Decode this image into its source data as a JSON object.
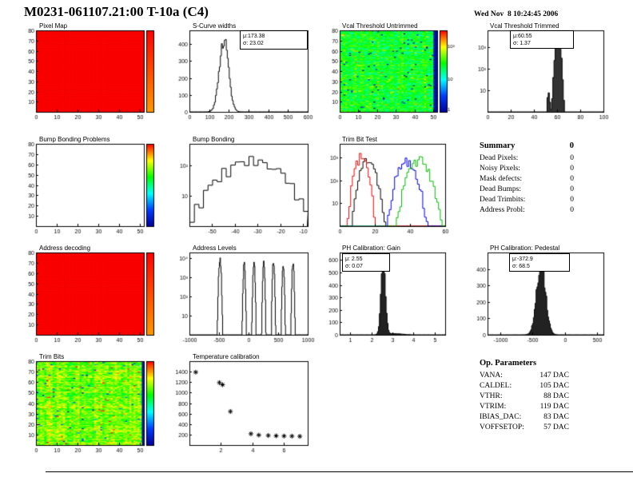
{
  "header": {
    "title": "M0231-061107.21:00 T-10a (C4)",
    "timestamp": "Wed Nov  8 10:24:45 2006"
  },
  "summary": {
    "title": "Summary",
    "total": "0",
    "rows": [
      {
        "label": "Dead Pixels:",
        "value": "0"
      },
      {
        "label": "Noisy Pixels:",
        "value": "0"
      },
      {
        "label": "Mask defects:",
        "value": "0"
      },
      {
        "label": "Dead Bumps:",
        "value": "0"
      },
      {
        "label": "Dead Trimbits:",
        "value": "0"
      },
      {
        "label": "Address Probl:",
        "value": "0"
      }
    ]
  },
  "op_parameters": {
    "title": "Op. Parameters",
    "rows": [
      {
        "label": "VANA:",
        "value": "147 DAC"
      },
      {
        "label": "CALDEL:",
        "value": "105 DAC"
      },
      {
        "label": "VTHR:",
        "value": "88 DAC"
      },
      {
        "label": "VTRIM:",
        "value": "119 DAC"
      },
      {
        "label": "IBIAS_DAC:",
        "value": "83 DAC"
      },
      {
        "label": "VOFFSETOP:",
        "value": "57 DAC"
      }
    ]
  },
  "chart_data": [
    {
      "id": "pixel-map",
      "type": "heatmap",
      "title": "Pixel Map",
      "mode": "uniform",
      "cols": 52,
      "rows": 80,
      "x": {
        "min": 0,
        "max": 52,
        "ticks": [
          0,
          10,
          20,
          30,
          40,
          50
        ]
      },
      "y": {
        "min": 0,
        "max": 80,
        "ticks": [
          10,
          20,
          30,
          40,
          50,
          60,
          70,
          80
        ]
      },
      "colorbar": {
        "range": [
          0.88,
          1
        ]
      }
    },
    {
      "id": "scurve-widths",
      "type": "hist",
      "title": "S-Curve widths",
      "x": {
        "min": 0,
        "max": 600,
        "ticks": [
          0,
          100,
          200,
          300,
          400,
          500,
          600
        ]
      },
      "y": {
        "min": 0,
        "max": 480,
        "ticks": [
          0,
          100,
          200,
          300,
          400
        ]
      },
      "bins": 120,
      "line": "#000000",
      "noise": 0.1,
      "seed": 3,
      "components": [
        {
          "mean": 173.38,
          "sigma": 23.02,
          "peak": 430
        }
      ],
      "stats": [
        "μ:173.38",
        "σ: 23.02"
      ]
    },
    {
      "id": "vcal-untrimmed",
      "type": "heatmap",
      "title": "Vcal Threshold Untrimmed",
      "mode": "noise",
      "cols": 52,
      "rows": 80,
      "base": 0.58,
      "spread": 0.09,
      "seed": 42,
      "edge_cols": 2,
      "edge_value": 0.04,
      "x": {
        "min": 0,
        "max": 52,
        "ticks": [
          0,
          10,
          20,
          30,
          40,
          50
        ]
      },
      "y": {
        "min": 0,
        "max": 80,
        "ticks": [
          10,
          20,
          30,
          40,
          50,
          60,
          70,
          80
        ]
      },
      "colorbar": {
        "range": [
          0,
          1
        ],
        "labels": [
          {
            "label": "10²",
            "f": 0.2
          },
          {
            "label": "10",
            "f": 0.6
          },
          {
            "label": "1",
            "f": 0.97
          }
        ]
      }
    },
    {
      "id": "vcal-trimmed",
      "type": "hist",
      "logy": true,
      "title": "Vcal Threshold Trimmed",
      "x": {
        "min": 0,
        "max": 100,
        "ticks": [
          0,
          20,
          40,
          60,
          80,
          100
        ]
      },
      "y": {
        "min": 1,
        "max": 6000,
        "ticks": [
          {
            "v": 10,
            "label": "10"
          },
          {
            "v": 100,
            "label": "10²"
          },
          {
            "v": 1000,
            "label": "10³"
          }
        ]
      },
      "bins": 100,
      "line": "#000000",
      "fill": "#333333",
      "noise": 0.3,
      "seed": 4,
      "components": [
        {
          "mean": 60.55,
          "sigma": 1.37,
          "peak": 2800
        },
        {
          "mean": 52.5,
          "sigma": 1.1,
          "peak": 6
        }
      ],
      "stats": [
        "μ:60.55",
        "σ: 1.37"
      ]
    },
    {
      "id": "bump-problems",
      "type": "heatmap",
      "title": "Bump Bonding Problems",
      "mode": "empty",
      "cols": 52,
      "rows": 80,
      "x": {
        "min": 0,
        "max": 52,
        "ticks": [
          0,
          10,
          20,
          30,
          40,
          50
        ]
      },
      "y": {
        "min": 0,
        "max": 80,
        "ticks": [
          10,
          20,
          30,
          40,
          50,
          60,
          70,
          80
        ]
      },
      "colorbar": {
        "range": [
          0,
          1
        ]
      }
    },
    {
      "id": "bump-bonding",
      "type": "hist",
      "logy": true,
      "title": "Bump Bonding",
      "x": {
        "min": -60,
        "max": -8,
        "ticks": [
          -50,
          -40,
          -30,
          -20,
          -10
        ]
      },
      "y": {
        "min": 1,
        "max": 500,
        "ticks": [
          {
            "v": 10,
            "label": "10"
          },
          {
            "v": 100,
            "label": "10²"
          }
        ]
      },
      "bins": 26,
      "line": "#000000",
      "noise": 0.55,
      "seed": 9,
      "components": [
        {
          "mean": -33,
          "sigma": 9,
          "peak": 130
        }
      ]
    },
    {
      "id": "trimbit-test",
      "type": "multihist",
      "logy": true,
      "title": "Trim Bit Test",
      "x": {
        "min": 0,
        "max": 60,
        "ticks": [
          0,
          20,
          40,
          60
        ]
      },
      "y": {
        "min": 1,
        "max": 4000,
        "ticks": [
          {
            "v": 10,
            "label": "10"
          },
          {
            "v": 100,
            "label": "10²"
          },
          {
            "v": 1000,
            "label": "10³"
          }
        ]
      },
      "bins": 60,
      "series": [
        {
          "color": "#000000",
          "mean": 16,
          "sigma": 2.6,
          "peak": 900,
          "seed": 11,
          "noise": 0.5
        },
        {
          "color": "#ee0000",
          "mean": 12,
          "sigma": 2.2,
          "peak": 1100,
          "seed": 12,
          "noise": 0.5
        },
        {
          "color": "#0000ee",
          "mean": 38,
          "sigma": 3.2,
          "peak": 800,
          "seed": 13,
          "noise": 0.5
        },
        {
          "color": "#00bb00",
          "mean": 45,
          "sigma": 3.6,
          "peak": 900,
          "seed": 14,
          "noise": 0.5
        }
      ]
    },
    {
      "id": "address-decoding",
      "type": "heatmap",
      "title": "Address decoding",
      "mode": "uniform",
      "cols": 52,
      "rows": 80,
      "x": {
        "min": 0,
        "max": 52,
        "ticks": [
          0,
          10,
          20,
          30,
          40,
          50
        ]
      },
      "y": {
        "min": 0,
        "max": 80,
        "ticks": [
          10,
          20,
          30,
          40,
          50,
          60,
          70,
          80
        ]
      },
      "colorbar": {
        "range": [
          0.88,
          1
        ]
      }
    },
    {
      "id": "address-levels",
      "type": "hist",
      "logy": true,
      "title": "Address Levels",
      "x": {
        "min": -1000,
        "max": 1000,
        "ticks": [
          -1000,
          -500,
          0,
          500,
          1000
        ]
      },
      "y": {
        "min": 1,
        "max": 20000,
        "ticks": [
          {
            "v": 10,
            "label": "10"
          },
          {
            "v": 100,
            "label": "10²"
          },
          {
            "v": 1000,
            "label": "10³"
          },
          {
            "v": 10000,
            "label": "10⁴"
          }
        ]
      },
      "bins": 220,
      "line": "#000000",
      "noise": 0.35,
      "seed": 5,
      "components": [
        {
          "mean": -490,
          "sigma": 11,
          "peak": 9000
        },
        {
          "mean": -80,
          "sigma": 9,
          "peak": 5000
        },
        {
          "mean": 85,
          "sigma": 9,
          "peak": 7000
        },
        {
          "mean": 250,
          "sigma": 9,
          "peak": 5500
        },
        {
          "mean": 415,
          "sigma": 9,
          "peak": 7000
        },
        {
          "mean": 580,
          "sigma": 9,
          "peak": 5000
        },
        {
          "mean": 745,
          "sigma": 9,
          "peak": 6500
        }
      ]
    },
    {
      "id": "ph-gain",
      "type": "hist",
      "title": "PH Calibration: Gain",
      "x": {
        "min": 0.5,
        "max": 5.5,
        "ticks": [
          1,
          2,
          3,
          4,
          5
        ]
      },
      "y": {
        "min": 0,
        "max": 660,
        "ticks": [
          0,
          100,
          200,
          300,
          400,
          500,
          600
        ]
      },
      "bins": 110,
      "line": "#000000",
      "fill": "#222222",
      "noise": 0.1,
      "seed": 21,
      "components": [
        {
          "mean": 2.55,
          "sigma": 0.1,
          "peak": 600
        },
        {
          "mean": 3.05,
          "sigma": 0.35,
          "peak": 10
        }
      ],
      "stats": [
        "μ: 2.55",
        "σ: 0.07"
      ]
    },
    {
      "id": "ph-pedestal",
      "type": "hist",
      "title": "PH Calibration: Pedestal",
      "x": {
        "min": -1200,
        "max": 600,
        "ticks": [
          -1000,
          -500,
          0,
          500
        ]
      },
      "y": {
        "min": 0,
        "max": 500,
        "ticks": [
          0,
          100,
          200,
          300,
          400
        ]
      },
      "bins": 130,
      "line": "#000000",
      "fill": "#222222",
      "noise": 0.15,
      "seed": 22,
      "components": [
        {
          "mean": -372.9,
          "sigma": 68.5,
          "peak": 430
        }
      ],
      "stats": [
        "μ:-372.9",
        "σ: 68.5"
      ]
    },
    {
      "id": "trim-bits",
      "type": "heatmap",
      "title": "Trim Bits",
      "mode": "noise",
      "cols": 52,
      "rows": 80,
      "base": 0.7,
      "spread": 0.1,
      "seed": 77,
      "edge_cols": 1,
      "edge_value": 0.05,
      "x": {
        "min": 0,
        "max": 52,
        "ticks": [
          0,
          10,
          20,
          30,
          40,
          50
        ]
      },
      "y": {
        "min": 0,
        "max": 80,
        "ticks": [
          10,
          20,
          30,
          40,
          50,
          60,
          70,
          80
        ]
      },
      "colorbar": {
        "range": [
          0,
          1
        ]
      }
    },
    {
      "id": "temperature",
      "type": "scatter",
      "title": "Temperature calibration",
      "x": {
        "min": 0,
        "max": 7.5,
        "ticks": [
          2,
          4,
          6
        ]
      },
      "y": {
        "min": 0,
        "max": 1600,
        "ticks": [
          200,
          400,
          600,
          800,
          1000,
          1200,
          1400
        ]
      },
      "points": [
        [
          0.4,
          1390
        ],
        [
          1.9,
          1190
        ],
        [
          2.1,
          1150
        ],
        [
          2.6,
          640
        ],
        [
          3.9,
          215
        ],
        [
          4.4,
          190
        ],
        [
          5.0,
          182
        ],
        [
          5.5,
          176
        ],
        [
          6.0,
          172
        ],
        [
          6.5,
          170
        ],
        [
          7.0,
          166
        ]
      ]
    }
  ]
}
